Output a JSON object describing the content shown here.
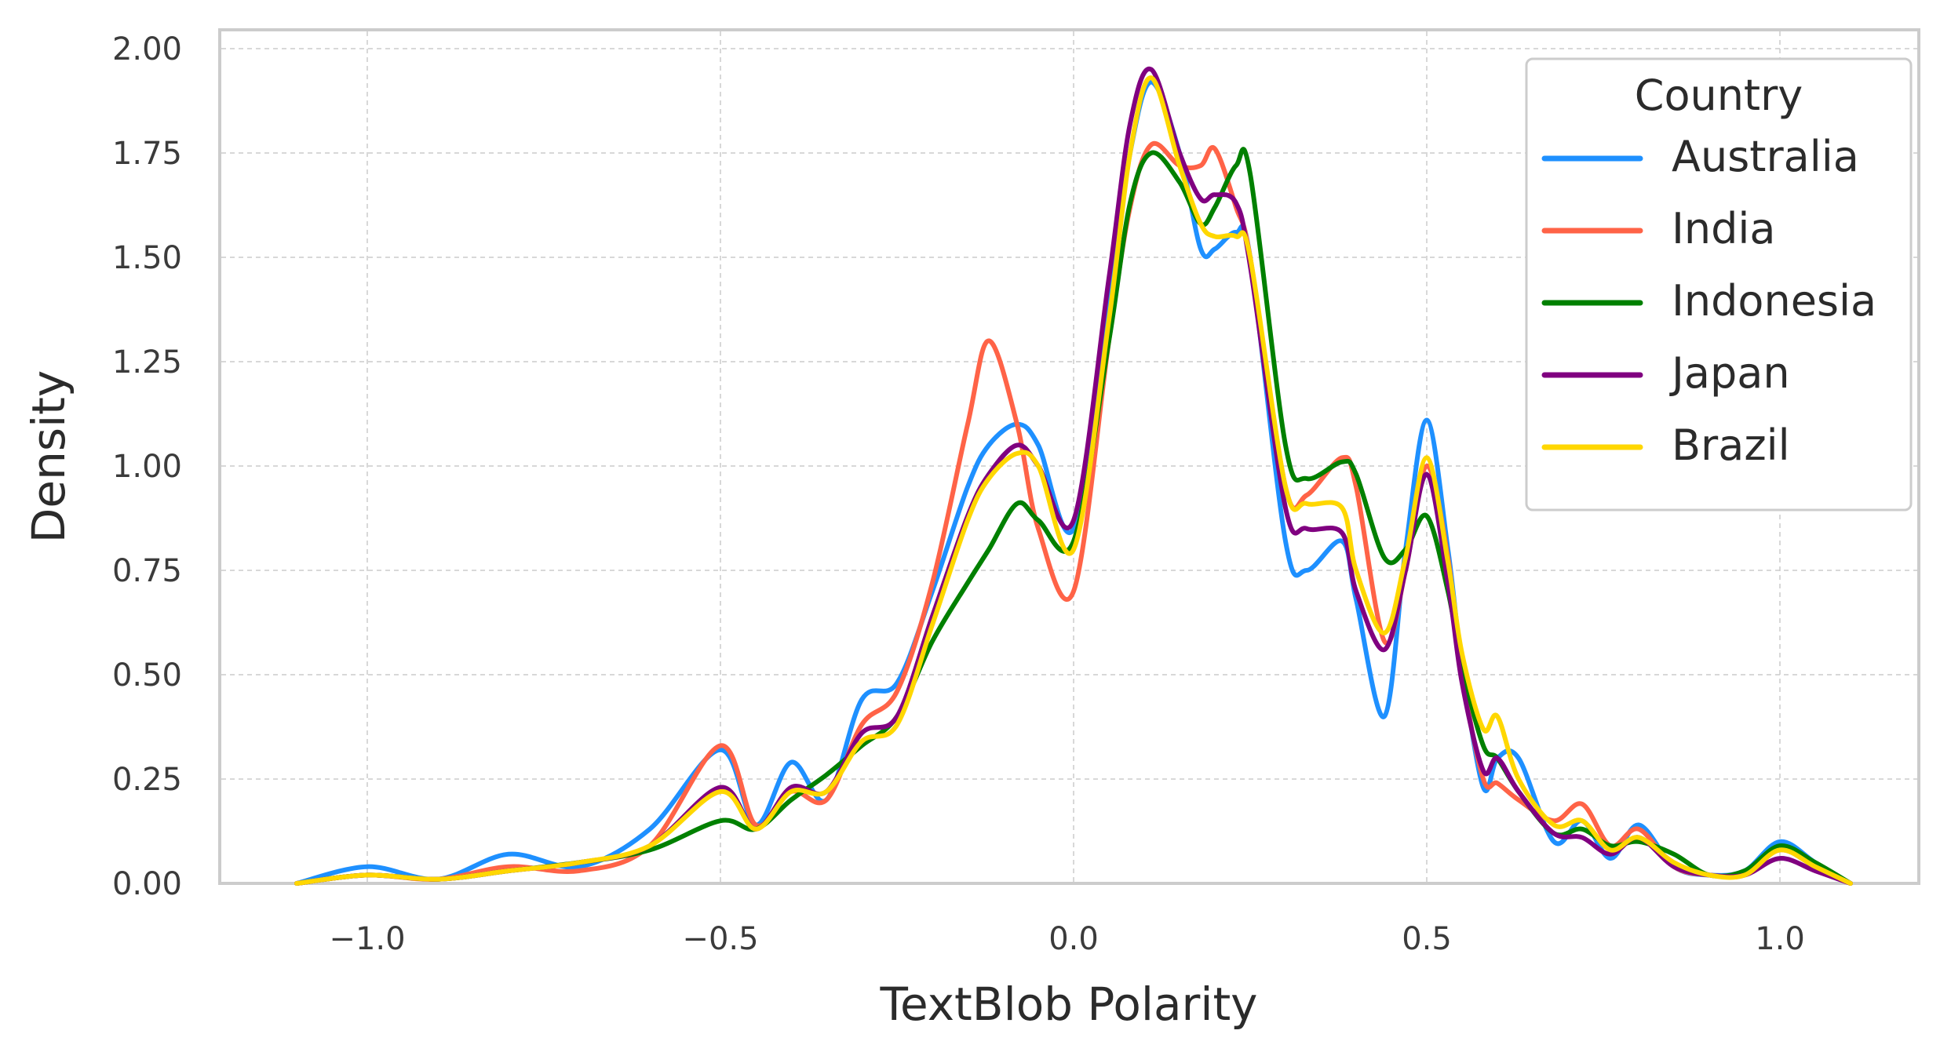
{
  "chart_data": {
    "type": "line",
    "title": "",
    "xlabel": "TextBlob Polarity",
    "ylabel": "Density",
    "xlim": [
      -1.18,
      1.18
    ],
    "ylim": [
      0,
      2.05
    ],
    "x_ticks": [
      -1.0,
      -0.5,
      0.0,
      0.5,
      1.0
    ],
    "x_tick_labels": [
      "−1.0",
      "−0.5",
      "0.0",
      "0.5",
      "1.0"
    ],
    "y_ticks": [
      0,
      0.25,
      0.5,
      0.75,
      1.0,
      1.25,
      1.5,
      1.75,
      2.0
    ],
    "y_tick_labels": [
      "0.00",
      "0.25",
      "0.50",
      "0.75",
      "1.00",
      "1.25",
      "1.50",
      "1.75",
      "2.00"
    ],
    "grid": true,
    "legend": {
      "title": "Country",
      "placement": "top-right"
    },
    "x": [
      -1.1,
      -1.0,
      -0.9,
      -0.8,
      -0.7,
      -0.6,
      -0.5,
      -0.45,
      -0.4,
      -0.35,
      -0.3,
      -0.25,
      -0.2,
      -0.15,
      -0.12,
      -0.08,
      -0.05,
      0.0,
      0.05,
      0.08,
      0.11,
      0.15,
      0.18,
      0.2,
      0.23,
      0.25,
      0.3,
      0.33,
      0.38,
      0.4,
      0.44,
      0.47,
      0.5,
      0.53,
      0.55,
      0.58,
      0.6,
      0.63,
      0.68,
      0.72,
      0.76,
      0.8,
      0.85,
      0.9,
      0.95,
      1.0,
      1.05,
      1.1
    ],
    "series": [
      {
        "name": "Australia",
        "color": "#1e90ff",
        "values": [
          0.0,
          0.04,
          0.01,
          0.07,
          0.04,
          0.13,
          0.32,
          0.14,
          0.29,
          0.2,
          0.44,
          0.48,
          0.7,
          0.95,
          1.05,
          1.1,
          1.05,
          0.85,
          1.4,
          1.75,
          1.92,
          1.75,
          1.52,
          1.52,
          1.56,
          1.5,
          0.82,
          0.75,
          0.82,
          0.68,
          0.4,
          0.8,
          1.11,
          0.8,
          0.52,
          0.23,
          0.3,
          0.3,
          0.1,
          0.15,
          0.06,
          0.14,
          0.04,
          0.02,
          0.03,
          0.1,
          0.05,
          0.0
        ]
      },
      {
        "name": "India",
        "color": "#ff6347",
        "values": [
          0.0,
          0.02,
          0.01,
          0.04,
          0.03,
          0.09,
          0.33,
          0.14,
          0.22,
          0.2,
          0.38,
          0.46,
          0.72,
          1.1,
          1.3,
          1.1,
          0.85,
          0.7,
          1.3,
          1.62,
          1.77,
          1.72,
          1.72,
          1.76,
          1.62,
          1.5,
          0.95,
          0.93,
          1.02,
          0.95,
          0.58,
          0.75,
          1.0,
          0.78,
          0.5,
          0.25,
          0.24,
          0.2,
          0.15,
          0.19,
          0.09,
          0.13,
          0.04,
          0.02,
          0.02,
          0.08,
          0.04,
          0.0
        ]
      },
      {
        "name": "Indonesia",
        "color": "#008000",
        "values": [
          0.0,
          0.02,
          0.01,
          0.03,
          0.05,
          0.08,
          0.15,
          0.13,
          0.2,
          0.26,
          0.33,
          0.4,
          0.58,
          0.72,
          0.8,
          0.91,
          0.87,
          0.82,
          1.3,
          1.63,
          1.75,
          1.68,
          1.58,
          1.62,
          1.72,
          1.7,
          1.05,
          0.97,
          1.01,
          0.98,
          0.78,
          0.8,
          0.88,
          0.7,
          0.52,
          0.33,
          0.3,
          0.22,
          0.12,
          0.13,
          0.09,
          0.1,
          0.07,
          0.02,
          0.03,
          0.09,
          0.05,
          0.0
        ]
      },
      {
        "name": "Japan",
        "color": "#800080",
        "values": [
          0.0,
          0.02,
          0.01,
          0.03,
          0.05,
          0.09,
          0.23,
          0.13,
          0.23,
          0.22,
          0.36,
          0.4,
          0.64,
          0.88,
          0.98,
          1.05,
          1.0,
          0.87,
          1.45,
          1.82,
          1.95,
          1.75,
          1.64,
          1.65,
          1.63,
          1.48,
          0.9,
          0.85,
          0.84,
          0.7,
          0.56,
          0.75,
          0.98,
          0.72,
          0.48,
          0.27,
          0.3,
          0.22,
          0.12,
          0.11,
          0.07,
          0.11,
          0.04,
          0.02,
          0.02,
          0.06,
          0.03,
          0.0
        ]
      },
      {
        "name": "Brazil",
        "color": "#ffd700",
        "values": [
          0.0,
          0.02,
          0.01,
          0.03,
          0.05,
          0.09,
          0.22,
          0.13,
          0.22,
          0.22,
          0.34,
          0.38,
          0.62,
          0.87,
          0.97,
          1.03,
          1.0,
          0.8,
          1.35,
          1.75,
          1.93,
          1.72,
          1.58,
          1.55,
          1.55,
          1.5,
          0.95,
          0.91,
          0.9,
          0.75,
          0.6,
          0.78,
          1.02,
          0.77,
          0.55,
          0.37,
          0.4,
          0.25,
          0.14,
          0.15,
          0.08,
          0.11,
          0.05,
          0.02,
          0.02,
          0.08,
          0.04,
          0.0
        ]
      }
    ]
  }
}
